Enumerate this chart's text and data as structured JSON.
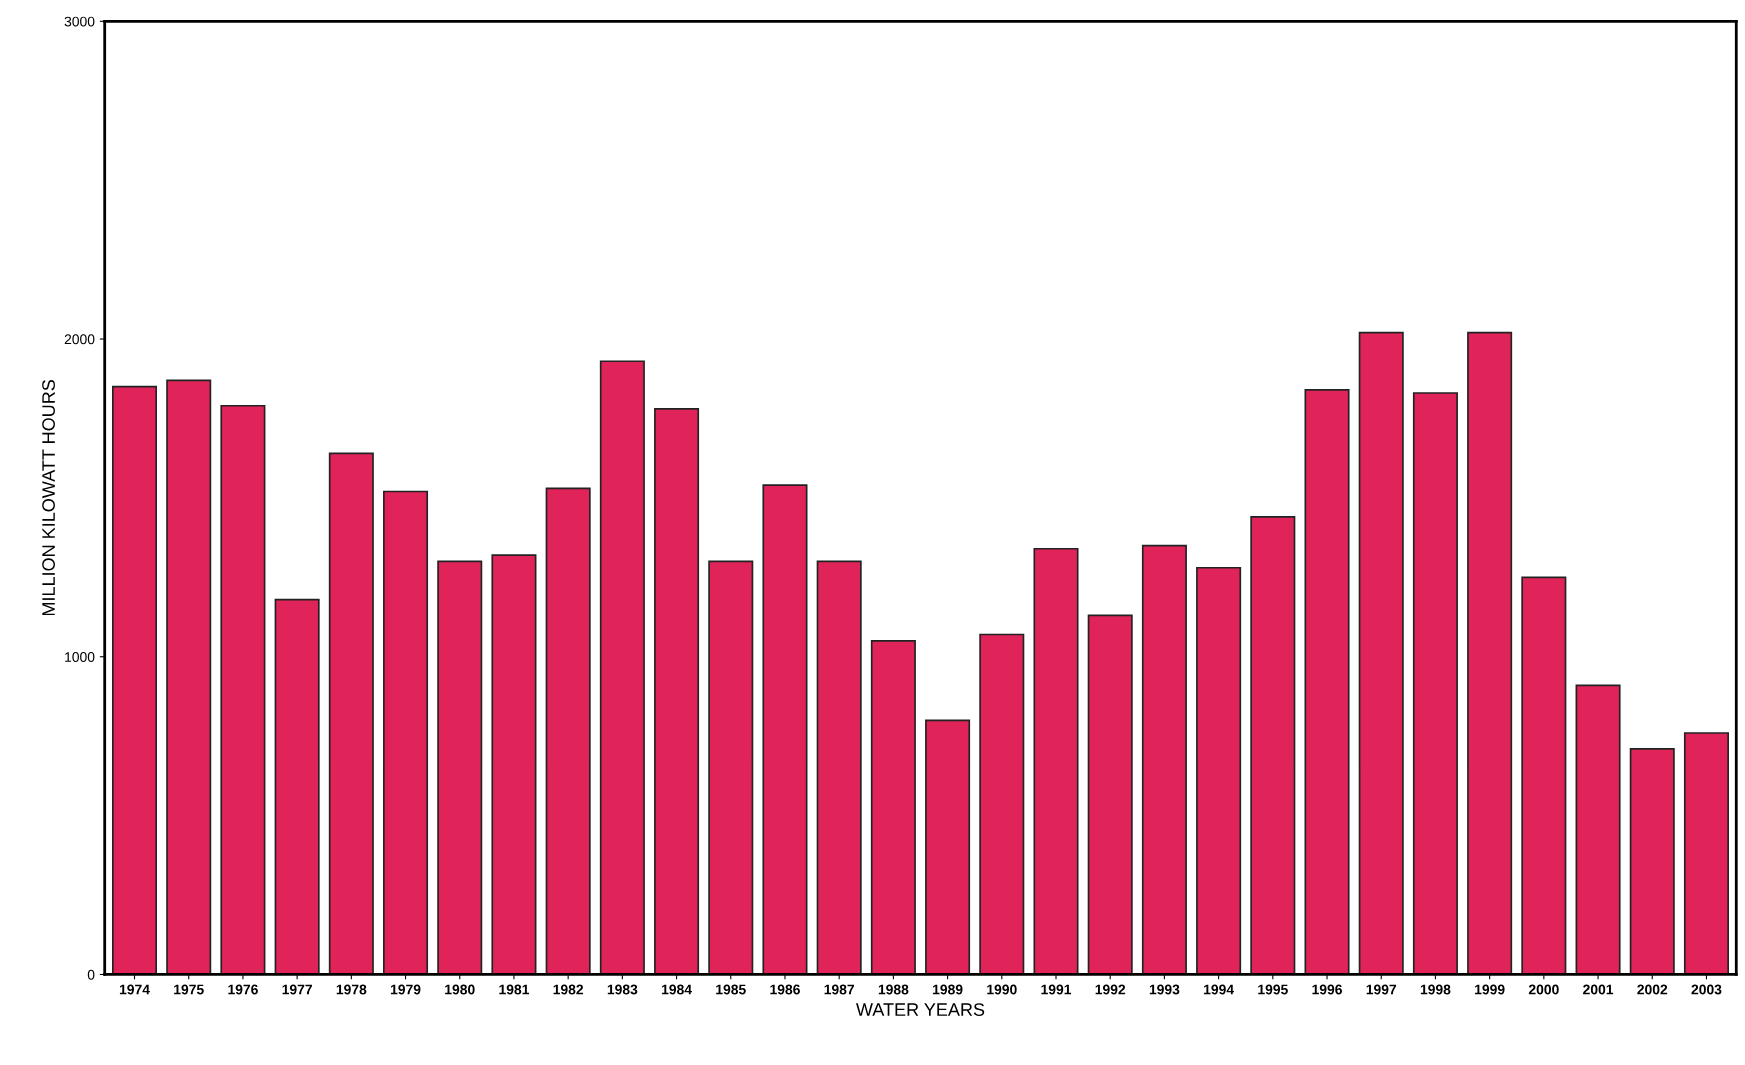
{
  "chart_data": {
    "type": "bar",
    "xlabel": "WATER YEARS",
    "ylabel": "MILLION KILOWATT HOURS",
    "categories": [
      "1974",
      "1975",
      "1976",
      "1977",
      "1978",
      "1979",
      "1980",
      "1981",
      "1982",
      "1983",
      "1984",
      "1985",
      "1986",
      "1987",
      "1988",
      "1989",
      "1990",
      "1991",
      "1992",
      "1993",
      "1994",
      "1995",
      "1996",
      "1997",
      "1998",
      "1999",
      "2000",
      "2001",
      "2002",
      "2003"
    ],
    "values": [
      1850,
      1870,
      1790,
      1180,
      1640,
      1520,
      1300,
      1320,
      1530,
      1930,
      1780,
      1300,
      1540,
      1300,
      1050,
      800,
      1070,
      1340,
      1130,
      1350,
      1280,
      1440,
      1840,
      2020,
      1830,
      2020,
      1250,
      910,
      710,
      760
    ],
    "color": "#e0245a",
    "ylim": [
      0,
      3000
    ],
    "yticks": [
      0,
      1000,
      2000,
      3000
    ],
    "grid": false
  }
}
